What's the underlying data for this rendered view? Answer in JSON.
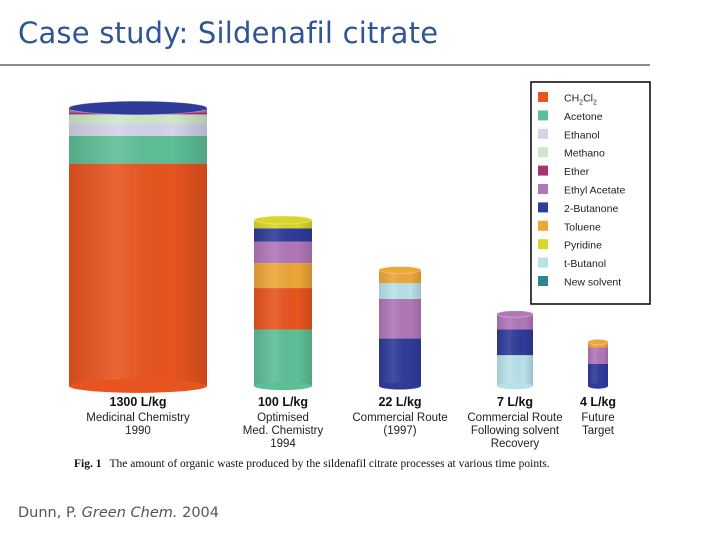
{
  "title": "Case study: Sildenafil citrate",
  "caption": {
    "label": "Fig. 1",
    "text": "The amount of organic waste produced by the sildenafil citrate processes at various time points."
  },
  "citation": {
    "author": "Dunn, P.",
    "journal": "Green Chem.",
    "year": "2004"
  },
  "chart_data": {
    "type": "bar",
    "subtype": "stacked-cylinder",
    "unit": "L/kg",
    "legend_position": "top-right",
    "legend": [
      {
        "key": "ch2cl2",
        "name": "CH2Cl2",
        "color": "#e8541f"
      },
      {
        "key": "acetone",
        "name": "Acetone",
        "color": "#5dbf96"
      },
      {
        "key": "ethanol",
        "name": "Ethanol",
        "color": "#d3d3ea"
      },
      {
        "key": "methanol",
        "name": "Methano",
        "color": "#cfe7c9"
      },
      {
        "key": "ether",
        "name": "Ether",
        "color": "#a83272"
      },
      {
        "key": "ethyl_acetate",
        "name": "Ethyl Acetate",
        "color": "#b177b8"
      },
      {
        "key": "butanone",
        "name": "2-Butanone",
        "color": "#2f3b99"
      },
      {
        "key": "toluene",
        "name": "Toluene",
        "color": "#eda638"
      },
      {
        "key": "pyridine",
        "name": "Pyridine",
        "color": "#d9d62a"
      },
      {
        "key": "t_butanol",
        "name": "t-Butanol",
        "color": "#b8e1ea"
      },
      {
        "key": "new_solvent",
        "name": "New solvent",
        "color": "#2e878f"
      }
    ],
    "bars": [
      {
        "total_label": "1300 L/kg",
        "desc": [
          "Medicinal Chemistry",
          "1990"
        ],
        "segments": [
          {
            "key": "ch2cl2",
            "value": 1040
          },
          {
            "key": "acetone",
            "value": 130
          },
          {
            "key": "ethanol",
            "value": 55
          },
          {
            "key": "methanol",
            "value": 45
          },
          {
            "key": "ether",
            "value": 10
          },
          {
            "key": "ethyl_acetate",
            "value": 10
          },
          {
            "key": "butanone",
            "value": 10
          }
        ]
      },
      {
        "total_label": "100 L/kg",
        "desc": [
          "Optimised",
          "Med. Chemistry",
          "1994"
        ],
        "segments": [
          {
            "key": "acetone",
            "value": 34
          },
          {
            "key": "ch2cl2",
            "value": 25
          },
          {
            "key": "toluene",
            "value": 15
          },
          {
            "key": "ethyl_acetate",
            "value": 13
          },
          {
            "key": "butanone",
            "value": 8
          },
          {
            "key": "pyridine",
            "value": 5
          }
        ]
      },
      {
        "total_label": "22 L/kg",
        "desc": [
          "Commercial Route",
          "(1997)"
        ],
        "segments": [
          {
            "key": "butanone",
            "value": 9
          },
          {
            "key": "ethyl_acetate",
            "value": 7.5
          },
          {
            "key": "t_butanol",
            "value": 3
          },
          {
            "key": "toluene",
            "value": 2.5
          }
        ]
      },
      {
        "total_label": "7 L/kg",
        "desc": [
          "Commercial Route",
          "Following solvent",
          "Recovery"
        ],
        "segments": [
          {
            "key": "t_butanol",
            "value": 3
          },
          {
            "key": "butanone",
            "value": 2.5
          },
          {
            "key": "ethyl_acetate",
            "value": 1.5
          }
        ]
      },
      {
        "total_label": "4 L/kg",
        "desc": [
          "Future",
          "Target"
        ],
        "segments": [
          {
            "key": "butanone",
            "value": 2
          },
          {
            "key": "ethyl_acetate",
            "value": 1.5
          },
          {
            "key": "toluene",
            "value": 0.5
          }
        ]
      }
    ]
  }
}
